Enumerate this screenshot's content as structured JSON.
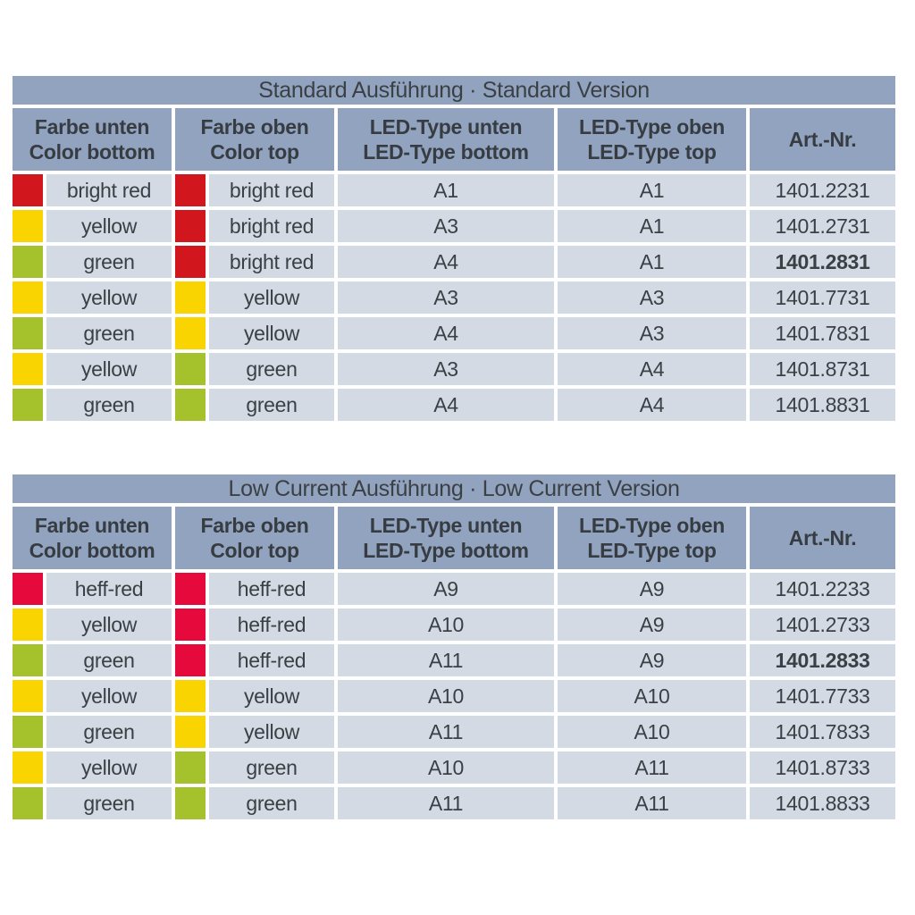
{
  "colors": {
    "band": "#91a3be",
    "cell_bg": "#d4dae4",
    "text": "#3b4045",
    "bright_red": "#d2161e",
    "yellow": "#fad400",
    "green": "#a5c12c",
    "heff_red": "#e60a3c"
  },
  "column_headers": [
    {
      "line1": "Farbe unten",
      "line2": "Color bottom"
    },
    {
      "line1": "Farbe oben",
      "line2": "Color top"
    },
    {
      "line1": "LED-Type unten",
      "line2": "LED-Type bottom"
    },
    {
      "line1": "LED-Type oben",
      "line2": "LED-Type top"
    },
    {
      "line1": "Art.-Nr."
    }
  ],
  "tables": [
    {
      "id": "standard",
      "title": "Standard Ausführung · Standard Version",
      "rows": [
        {
          "color_bottom": "bright red",
          "swatch_bottom": "bright_red",
          "color_top": "bright red",
          "swatch_top": "bright_red",
          "led_bottom": "A1",
          "led_top": "A1",
          "art_nr": "1401.2231",
          "art_bold": false
        },
        {
          "color_bottom": "yellow",
          "swatch_bottom": "yellow",
          "color_top": "bright red",
          "swatch_top": "bright_red",
          "led_bottom": "A3",
          "led_top": "A1",
          "art_nr": "1401.2731",
          "art_bold": false
        },
        {
          "color_bottom": "green",
          "swatch_bottom": "green",
          "color_top": "bright red",
          "swatch_top": "bright_red",
          "led_bottom": "A4",
          "led_top": "A1",
          "art_nr": "1401.2831",
          "art_bold": true
        },
        {
          "color_bottom": "yellow",
          "swatch_bottom": "yellow",
          "color_top": "yellow",
          "swatch_top": "yellow",
          "led_bottom": "A3",
          "led_top": "A3",
          "art_nr": "1401.7731",
          "art_bold": false
        },
        {
          "color_bottom": "green",
          "swatch_bottom": "green",
          "color_top": "yellow",
          "swatch_top": "yellow",
          "led_bottom": "A4",
          "led_top": "A3",
          "art_nr": "1401.7831",
          "art_bold": false
        },
        {
          "color_bottom": "yellow",
          "swatch_bottom": "yellow",
          "color_top": "green",
          "swatch_top": "green",
          "led_bottom": "A3",
          "led_top": "A4",
          "art_nr": "1401.8731",
          "art_bold": false
        },
        {
          "color_bottom": "green",
          "swatch_bottom": "green",
          "color_top": "green",
          "swatch_top": "green",
          "led_bottom": "A4",
          "led_top": "A4",
          "art_nr": "1401.8831",
          "art_bold": false
        }
      ]
    },
    {
      "id": "low-current",
      "title": "Low Current Ausführung · Low Current Version",
      "rows": [
        {
          "color_bottom": "heff-red",
          "swatch_bottom": "heff_red",
          "color_top": "heff-red",
          "swatch_top": "heff_red",
          "led_bottom": "A9",
          "led_top": "A9",
          "art_nr": "1401.2233",
          "art_bold": false
        },
        {
          "color_bottom": "yellow",
          "swatch_bottom": "yellow",
          "color_top": "heff-red",
          "swatch_top": "heff_red",
          "led_bottom": "A10",
          "led_top": "A9",
          "art_nr": "1401.2733",
          "art_bold": false
        },
        {
          "color_bottom": "green",
          "swatch_bottom": "green",
          "color_top": "heff-red",
          "swatch_top": "heff_red",
          "led_bottom": "A11",
          "led_top": "A9",
          "art_nr": "1401.2833",
          "art_bold": true
        },
        {
          "color_bottom": "yellow",
          "swatch_bottom": "yellow",
          "color_top": "yellow",
          "swatch_top": "yellow",
          "led_bottom": "A10",
          "led_top": "A10",
          "art_nr": "1401.7733",
          "art_bold": false
        },
        {
          "color_bottom": "green",
          "swatch_bottom": "green",
          "color_top": "yellow",
          "swatch_top": "yellow",
          "led_bottom": "A11",
          "led_top": "A10",
          "art_nr": "1401.7833",
          "art_bold": false
        },
        {
          "color_bottom": "yellow",
          "swatch_bottom": "yellow",
          "color_top": "green",
          "swatch_top": "green",
          "led_bottom": "A10",
          "led_top": "A11",
          "art_nr": "1401.8733",
          "art_bold": false
        },
        {
          "color_bottom": "green",
          "swatch_bottom": "green",
          "color_top": "green",
          "swatch_top": "green",
          "led_bottom": "A11",
          "led_top": "A11",
          "art_nr": "1401.8833",
          "art_bold": false
        }
      ]
    }
  ]
}
